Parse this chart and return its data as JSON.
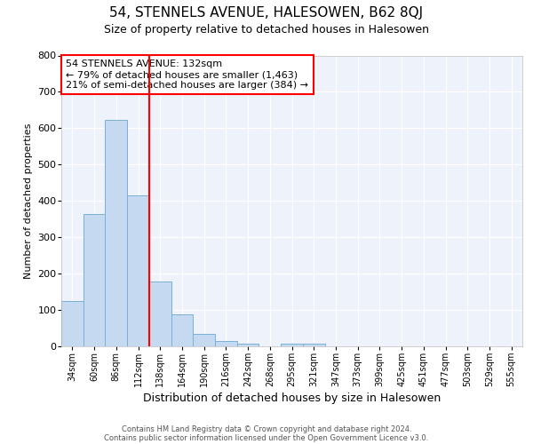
{
  "title": "54, STENNELS AVENUE, HALESOWEN, B62 8QJ",
  "subtitle": "Size of property relative to detached houses in Halesowen",
  "xlabel": "Distribution of detached houses by size in Halesowen",
  "ylabel": "Number of detached properties",
  "bar_color": "#c5d9f0",
  "bar_edge_color": "#7bafd4",
  "categories": [
    "34sqm",
    "60sqm",
    "86sqm",
    "112sqm",
    "138sqm",
    "164sqm",
    "190sqm",
    "216sqm",
    "242sqm",
    "268sqm",
    "295sqm",
    "321sqm",
    "347sqm",
    "373sqm",
    "399sqm",
    "425sqm",
    "451sqm",
    "477sqm",
    "503sqm",
    "529sqm",
    "555sqm"
  ],
  "values": [
    125,
    365,
    622,
    415,
    178,
    87,
    35,
    15,
    8,
    0,
    8,
    8,
    0,
    0,
    0,
    0,
    0,
    0,
    0,
    0,
    0
  ],
  "red_line_index": 4,
  "annotation_line1": "54 STENNELS AVENUE: 132sqm",
  "annotation_line2": "← 79% of detached houses are smaller (1,463)",
  "annotation_line3": "21% of semi-detached houses are larger (384) →",
  "ylim": [
    0,
    800
  ],
  "yticks": [
    0,
    100,
    200,
    300,
    400,
    500,
    600,
    700,
    800
  ],
  "footer1": "Contains HM Land Registry data © Crown copyright and database right 2024.",
  "footer2": "Contains public sector information licensed under the Open Government Licence v3.0.",
  "background_color": "#eef2fb",
  "grid_color": "#ffffff",
  "title_fontsize": 11,
  "subtitle_fontsize": 9,
  "ylabel_fontsize": 8,
  "xlabel_fontsize": 9,
  "tick_fontsize": 7,
  "annotation_fontsize": 8,
  "footer_fontsize": 6
}
